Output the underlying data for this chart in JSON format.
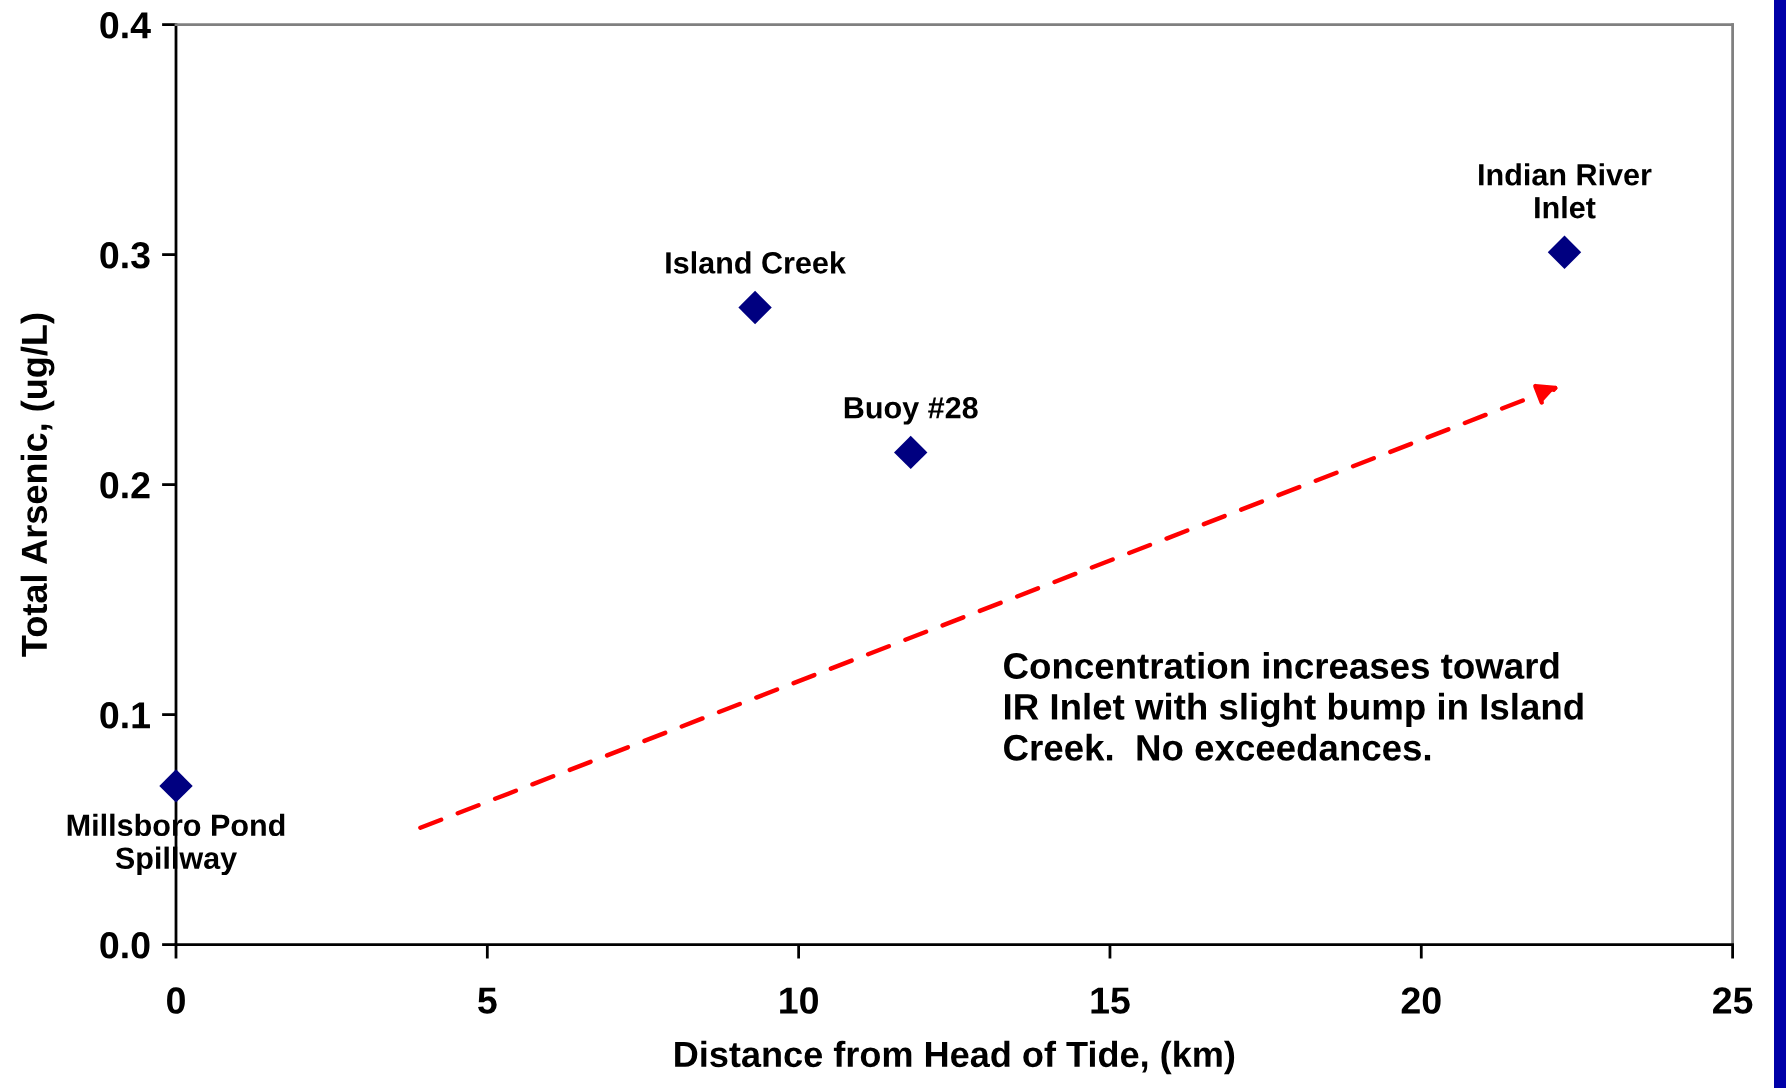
{
  "chart_data": {
    "type": "scatter",
    "xlabel": "Distance from Head of Tide, (km)",
    "ylabel": "Total Arsenic, (ug/L)",
    "x": [
      0,
      9.3,
      11.8,
      22.3
    ],
    "values": [
      0.069,
      0.277,
      0.214,
      0.301
    ],
    "color": "#000080",
    "marker": "diamond",
    "xlim": [
      0,
      25
    ],
    "ylim": [
      0,
      0.4
    ],
    "xticks": [
      0,
      5,
      10,
      15,
      20,
      25
    ],
    "yticks": [
      {
        "value": 0,
        "label": "0.0"
      },
      0.1,
      0.2,
      0.3,
      0.4
    ],
    "annotations": [
      {
        "text": "Millsboro Pond\nSpillway",
        "x": 0,
        "y": 0.069
      },
      {
        "text": "Island Creek",
        "x": 9.3,
        "y": 0.277
      },
      {
        "text": "Buoy #28",
        "x": 11.8,
        "y": 0.214
      },
      {
        "text": "Indian River\nInlet",
        "x": 22.3,
        "y": 0.301
      },
      "Concentration increases toward\nIR Inlet with slight bump in Island\nCreek.  No exceedances."
    ]
  }
}
